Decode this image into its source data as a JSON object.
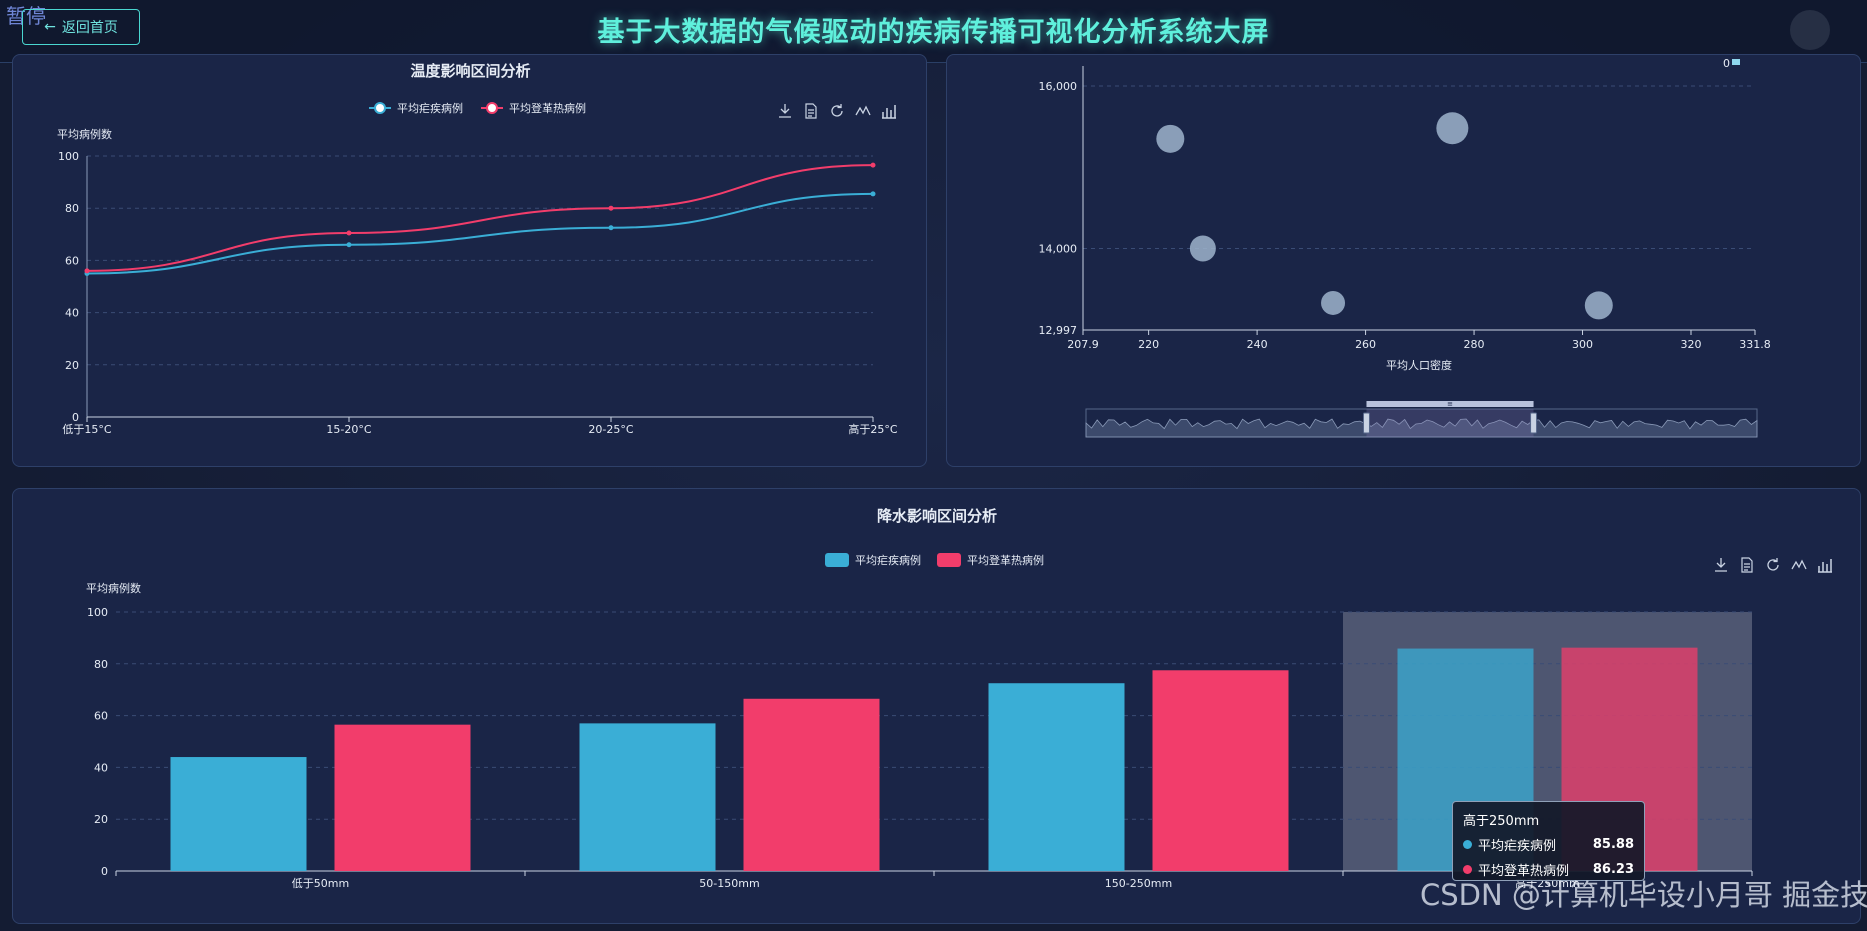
{
  "header": {
    "pause_label": "暂停",
    "back_label": "返回首页",
    "title": "基于大数据的气候驱动的疾病传播可视化分析系统大屏"
  },
  "colors": {
    "malaria": "#3aaed6",
    "dengue": "#f23d6b",
    "bubble": "#9fb4cc",
    "accent": "#5ff0dc"
  },
  "toolbox_icons": [
    "download-icon",
    "data-view-icon",
    "restore-icon",
    "line-chart-icon",
    "bar-chart-icon"
  ],
  "temperature_panel": {
    "chart_data": {
      "type": "line",
      "title": "温度影响区间分析",
      "ylabel": "平均病例数",
      "xlabel": "",
      "categories": [
        "低于15°C",
        "15-20°C",
        "20-25°C",
        "高于25°C"
      ],
      "ylim": [
        0,
        100
      ],
      "yticks": [
        0,
        20,
        40,
        60,
        80,
        100
      ],
      "legend_position": "top-center",
      "series": [
        {
          "name": "平均疟疾病例",
          "values": [
            55,
            66,
            72.5,
            85.5
          ]
        },
        {
          "name": "平均登革热病例",
          "values": [
            56,
            70.5,
            80,
            96.5
          ]
        }
      ]
    }
  },
  "scatter_panel": {
    "chart_data": {
      "type": "scatter",
      "title": "",
      "xlabel": "平均人口密度",
      "ylabel": "",
      "xlim": [
        207.9,
        331.8
      ],
      "ylim": [
        12997,
        16000
      ],
      "xtick_labels": [
        "207.9",
        "220",
        "240",
        "260",
        "280",
        "300",
        "320",
        "331.8"
      ],
      "xtick_values": [
        207.9,
        220,
        240,
        260,
        280,
        300,
        320,
        331.8
      ],
      "ytick_labels": [
        "12,997",
        "14,000",
        "16,000"
      ],
      "ytick_values": [
        12997,
        14000,
        16000
      ],
      "points": [
        {
          "x": 224,
          "y": 15350
        },
        {
          "x": 276,
          "y": 15480
        },
        {
          "x": 230,
          "y": 14000
        },
        {
          "x": 254,
          "y": 13330
        },
        {
          "x": 303,
          "y": 13300
        }
      ],
      "legend_visible_value": "0",
      "datazoom": {
        "start": 0.418,
        "end": 0.667,
        "handle_label": "≡"
      }
    }
  },
  "precip_panel": {
    "chart_data": {
      "type": "bar",
      "title": "降水影响区间分析",
      "ylabel": "平均病例数",
      "xlabel": "",
      "categories": [
        "低于50mm",
        "50-150mm",
        "150-250mm",
        "高于250mm"
      ],
      "ylim": [
        0,
        100
      ],
      "yticks": [
        0,
        20,
        40,
        60,
        80,
        100
      ],
      "legend_position": "top-center",
      "series": [
        {
          "name": "平均疟疾病例",
          "values": [
            44,
            57,
            72.5,
            85.88
          ]
        },
        {
          "name": "平均登革热病例",
          "values": [
            56.5,
            66.5,
            77.5,
            86.23
          ]
        }
      ],
      "highlighted_index": 3
    },
    "tooltip": {
      "title": "高于250mm",
      "rows": [
        {
          "name": "平均疟疾病例",
          "value": "85.88"
        },
        {
          "name": "平均登革热病例",
          "value": "86.23"
        }
      ]
    }
  },
  "watermark": "CSDN @计算机毕设小月哥 掘金技术社区"
}
